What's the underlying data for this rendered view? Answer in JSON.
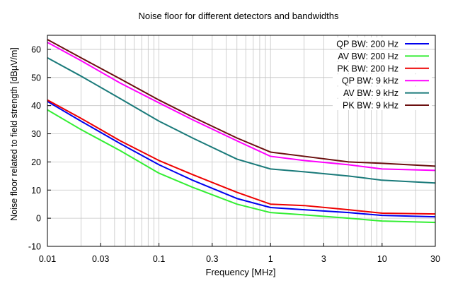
{
  "chart_data": {
    "type": "line",
    "title": "Noise floor for different detectors and bandwidths",
    "xlabel": "Frequency [MHz]",
    "ylabel": "Noise floor related to field strength [dBµV/m]",
    "xscale": "log",
    "xlim": [
      0.01,
      30
    ],
    "ylim": [
      -10,
      65
    ],
    "grid": true,
    "legend_position": "top-right",
    "x_ticks": [
      {
        "value": 0.01,
        "label": "0.01"
      },
      {
        "value": 0.03,
        "label": "0.03"
      },
      {
        "value": 0.1,
        "label": "0.1"
      },
      {
        "value": 0.3,
        "label": "0.3"
      },
      {
        "value": 1,
        "label": "1"
      },
      {
        "value": 3,
        "label": "3"
      },
      {
        "value": 10,
        "label": "10"
      },
      {
        "value": 30,
        "label": "30"
      }
    ],
    "y_ticks": [
      {
        "value": -10,
        "label": "-10"
      },
      {
        "value": 0,
        "label": "0"
      },
      {
        "value": 10,
        "label": "10"
      },
      {
        "value": 20,
        "label": "20"
      },
      {
        "value": 30,
        "label": "30"
      },
      {
        "value": 40,
        "label": "40"
      },
      {
        "value": 50,
        "label": "50"
      },
      {
        "value": 60,
        "label": "60"
      }
    ],
    "x": [
      0.01,
      0.02,
      0.045,
      0.1,
      0.2,
      0.5,
      1,
      2,
      5,
      10,
      30
    ],
    "series": [
      {
        "name": "QP BW: 200 Hz",
        "color": "#0000ee",
        "values": [
          41.5,
          34.5,
          26.5,
          19,
          13.5,
          7,
          3.8,
          3,
          2,
          1,
          0.5
        ]
      },
      {
        "name": "AV BW: 200 Hz",
        "color": "#33ee33",
        "values": [
          38.5,
          31.5,
          24,
          16,
          11,
          5,
          2,
          1.2,
          0,
          -1,
          -1.5
        ]
      },
      {
        "name": "PK BW: 200 Hz",
        "color": "#ee0000",
        "values": [
          42,
          35.5,
          27.5,
          20.5,
          15.5,
          9.2,
          5,
          4.5,
          3,
          1.8,
          1.5
        ]
      },
      {
        "name": "QP BW: 9 kHz",
        "color": "#ff00ff",
        "values": [
          62.5,
          56,
          48,
          41,
          35,
          27.5,
          22,
          20.5,
          19,
          17.5,
          17
        ]
      },
      {
        "name": "AV BW: 9 kHz",
        "color": "#1a7a7a",
        "values": [
          57,
          50.5,
          42.5,
          34.5,
          28.5,
          21,
          17.5,
          16.5,
          15,
          13.5,
          12.5
        ]
      },
      {
        "name": "PK BW: 9 kHz",
        "color": "#6b0f0f",
        "values": [
          63.5,
          57,
          49.5,
          42,
          36,
          28.5,
          23.5,
          22,
          20,
          19.5,
          18.5
        ]
      }
    ]
  }
}
